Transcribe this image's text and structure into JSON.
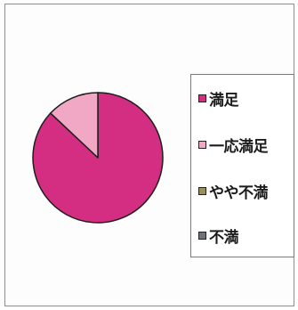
{
  "chart_data": {
    "type": "pie",
    "title": "",
    "slices": [
      {
        "label": "満足",
        "value": 87,
        "color": "#d42e82"
      },
      {
        "label": "一応満足",
        "value": 13,
        "color": "#f0a8c4"
      },
      {
        "label": "やや不満",
        "value": 0,
        "color": "#9a8f55"
      },
      {
        "label": "不満",
        "value": 0,
        "color": "#6f7378"
      }
    ],
    "start_angle_deg": 0,
    "direction": "clockwise",
    "legend_position": "right",
    "slice_outline_color": "#1e1e1e"
  }
}
